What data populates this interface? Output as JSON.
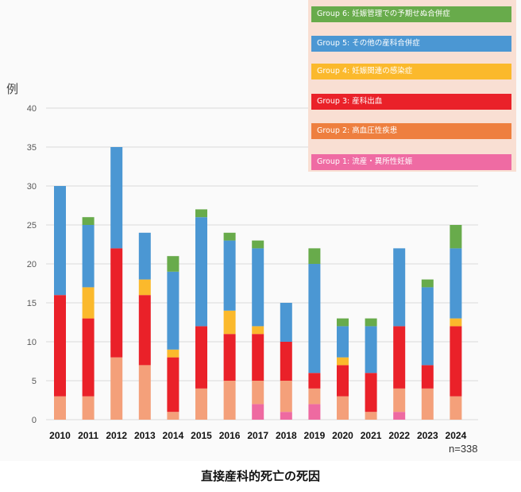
{
  "chart_data": {
    "type": "bar",
    "stacked": true,
    "title": "直接産科的死亡の死因",
    "xlabel": "",
    "ylabel": "例",
    "ylim": [
      0,
      40
    ],
    "yticks": [
      0,
      5,
      10,
      15,
      20,
      25,
      30,
      35,
      40
    ],
    "grid": true,
    "legend_position": "top-right",
    "note": "n=338",
    "categories": [
      "2010",
      "2011",
      "2012",
      "2013",
      "2014",
      "2015",
      "2016",
      "2017",
      "2018",
      "2019",
      "2020",
      "2021",
      "2022",
      "2023",
      "2024"
    ],
    "series": [
      {
        "name": "Group 1: 流産・異所性妊娠",
        "color": "#ee6aa1",
        "legend_color": "#ef6ba3",
        "values": [
          0,
          0,
          0,
          0,
          0,
          0,
          0,
          2,
          1,
          2,
          0,
          0,
          1,
          0,
          0
        ]
      },
      {
        "name": "Group 2: 高血圧性疾患",
        "color": "#f4a07a",
        "legend_color": "#ee7f3f",
        "values": [
          3,
          3,
          8,
          7,
          1,
          4,
          5,
          3,
          4,
          2,
          3,
          1,
          3,
          4,
          3
        ]
      },
      {
        "name": "Group 3: 産科出血",
        "color": "#ea2129",
        "legend_color": "#ea2129",
        "values": [
          13,
          10,
          14,
          9,
          7,
          8,
          6,
          6,
          5,
          2,
          4,
          5,
          8,
          3,
          9
        ]
      },
      {
        "name": "Group 4: 妊娠関連の感染症",
        "color": "#fbb92c",
        "legend_color": "#fbb92c",
        "values": [
          0,
          4,
          0,
          2,
          1,
          0,
          3,
          1,
          0,
          0,
          1,
          0,
          0,
          0,
          1
        ]
      },
      {
        "name": "Group 5: その他の産科合併症",
        "color": "#4b97d3",
        "legend_color": "#4b97d3",
        "values": [
          14,
          8,
          13,
          6,
          10,
          14,
          9,
          10,
          5,
          14,
          4,
          6,
          10,
          10,
          9
        ]
      },
      {
        "name": "Group 6: 妊娠管理での予期せぬ合併症",
        "color": "#68ab4b",
        "legend_color": "#68ab4b",
        "values": [
          0,
          1,
          0,
          0,
          2,
          1,
          1,
          1,
          0,
          2,
          1,
          1,
          0,
          1,
          3
        ]
      }
    ],
    "legend_order": [
      5,
      4,
      3,
      2,
      1,
      0
    ]
  }
}
